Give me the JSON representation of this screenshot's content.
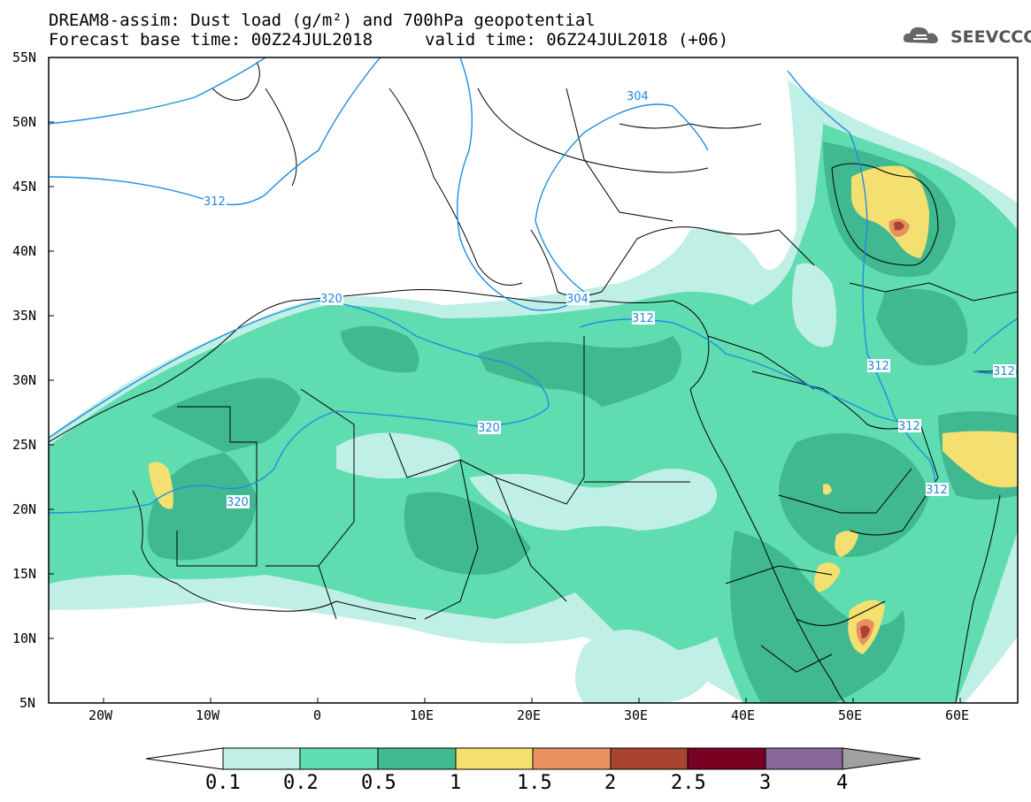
{
  "title": {
    "line1": "DREAM8-assim: Dust load (g/m²) and 700hPa geopotential",
    "line2_base": "Forecast base time: 00Z24JUL2018",
    "line2_valid": "valid time: 06Z24JUL2018 (+06)"
  },
  "logo": {
    "text": "SEEVCCC",
    "icon": "cloud-icon"
  },
  "map": {
    "lat_labels": [
      "55N",
      "50N",
      "45N",
      "40N",
      "35N",
      "30N",
      "25N",
      "20N",
      "15N",
      "10N",
      "5N"
    ],
    "lon_labels": [
      "20W",
      "10W",
      "0",
      "10E",
      "20E",
      "30E",
      "40E",
      "50E",
      "60E"
    ],
    "contour_labels": [
      "304",
      "312",
      "304",
      "320",
      "312",
      "320",
      "320",
      "312",
      "312",
      "312",
      "312"
    ],
    "colors": {
      "geopotential": "#1e8fe0",
      "borders": "#000000"
    }
  },
  "colorbar": {
    "levels": [
      "0.1",
      "0.2",
      "0.5",
      "1",
      "1.5",
      "2",
      "2.5",
      "3",
      "4"
    ],
    "colors": [
      "#ffffff",
      "#bfefe5",
      "#5fdcb0",
      "#40b890",
      "#f4e070",
      "#e89060",
      "#a84430",
      "#780020",
      "#886898",
      "#a0a0a0"
    ]
  }
}
